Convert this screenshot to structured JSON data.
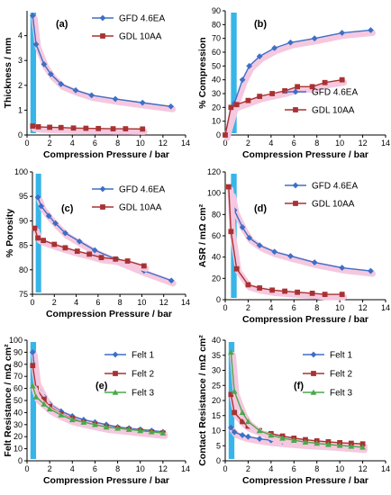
{
  "figure": {
    "colors": {
      "blue": "#3e6fc6",
      "red": "#a83232",
      "green": "#4aa84a",
      "band": "#38b5e8",
      "shadow": "#f5c8df"
    }
  },
  "chart_data": [
    {
      "id": "a",
      "letter": "(a)",
      "type": "line",
      "xlabel": "Compression Pressure / bar",
      "ylabel": "Thickness / mm",
      "xlim": [
        0,
        14
      ],
      "ylim": [
        0,
        5
      ],
      "xticks": [
        0,
        2,
        4,
        6,
        8,
        10,
        12,
        14
      ],
      "yticks": [
        0,
        1,
        2,
        3,
        4
      ],
      "band": [
        0.3,
        0.8
      ],
      "legend_placement": "top-right",
      "series": [
        {
          "name": "GFD 4.6EA",
          "marker": "diamond",
          "color": "#3e6fc6",
          "x": [
            0.5,
            0.8,
            1.5,
            2.1,
            3.0,
            4.3,
            5.7,
            7.8,
            10.2,
            12.7
          ],
          "y": [
            4.8,
            3.65,
            2.85,
            2.45,
            2.05,
            1.8,
            1.6,
            1.45,
            1.3,
            1.15
          ]
        },
        {
          "name": "GDL 10AA",
          "marker": "square",
          "color": "#a83232",
          "x": [
            0.5,
            1.0,
            2.0,
            3.0,
            4.1,
            5.2,
            6.3,
            7.6,
            8.7,
            10.2
          ],
          "y": [
            0.36,
            0.33,
            0.31,
            0.3,
            0.28,
            0.27,
            0.26,
            0.25,
            0.25,
            0.24
          ]
        }
      ]
    },
    {
      "id": "b",
      "letter": "(b)",
      "type": "line",
      "xlabel": "Compression Pressure / bar",
      "ylabel": "% Compression",
      "xlim": [
        0,
        14
      ],
      "ylim": [
        0,
        90
      ],
      "xticks": [
        0,
        2,
        4,
        6,
        8,
        10,
        12,
        14
      ],
      "yticks": [
        0,
        10,
        20,
        30,
        40,
        50,
        60,
        70,
        80,
        90
      ],
      "band": [
        0.5,
        1.0
      ],
      "legend_placement": "middle-right",
      "series": [
        {
          "name": "GFD 4.6EA",
          "marker": "diamond",
          "color": "#3e6fc6",
          "x": [
            0,
            0.8,
            1.5,
            2.1,
            3.0,
            4.3,
            5.7,
            7.8,
            10.2,
            12.7
          ],
          "y": [
            0,
            23,
            40,
            50,
            57,
            63,
            67,
            70,
            74,
            76
          ]
        },
        {
          "name": "GDL 10AA",
          "marker": "square",
          "color": "#a83232",
          "x": [
            0,
            0.5,
            1.0,
            2.0,
            3.0,
            4.1,
            5.2,
            6.3,
            7.6,
            8.7,
            10.2
          ],
          "y": [
            0,
            20,
            22,
            25,
            28,
            30,
            32,
            35,
            35,
            38,
            40
          ]
        }
      ]
    },
    {
      "id": "c",
      "letter": "(c)",
      "type": "line",
      "xlabel": "Compression Pressure / bar",
      "ylabel": "% Porosity",
      "xlim": [
        0,
        14
      ],
      "ylim": [
        75,
        100
      ],
      "xticks": [
        0,
        2,
        4,
        6,
        8,
        10,
        12,
        14
      ],
      "yticks": [
        75,
        80,
        85,
        90,
        95,
        100
      ],
      "band": [
        0.3,
        0.8
      ],
      "legend_placement": "top-right",
      "series": [
        {
          "name": "GFD 4.6EA",
          "marker": "diamond",
          "color": "#3e6fc6",
          "x": [
            0.5,
            0.8,
            1.5,
            2.1,
            3.0,
            4.3,
            5.7,
            7.8,
            10.2,
            12.7
          ],
          "y": [
            94.8,
            93.0,
            91.0,
            89.5,
            87.5,
            85.8,
            84.0,
            82.0,
            79.8,
            77.8
          ]
        },
        {
          "name": "GDL 10AA",
          "marker": "square",
          "color": "#a83232",
          "x": [
            0.2,
            0.5,
            1.0,
            2.0,
            3.0,
            4.1,
            5.2,
            6.3,
            7.6,
            8.7,
            10.2
          ],
          "y": [
            88.5,
            86.5,
            86.0,
            85.2,
            84.5,
            83.8,
            83.2,
            82.5,
            82.2,
            81.8,
            80.8
          ]
        }
      ]
    },
    {
      "id": "d",
      "letter": "(d)",
      "type": "line",
      "xlabel": "Compression Pressure / bar",
      "ylabel": "ASR / mΩ cm²",
      "xlim": [
        0,
        14
      ],
      "ylim": [
        0,
        120
      ],
      "xticks": [
        0,
        2,
        4,
        6,
        8,
        10,
        12,
        14
      ],
      "yticks": [
        0,
        20,
        40,
        60,
        80,
        100,
        120
      ],
      "band": [
        0.5,
        1.0
      ],
      "legend_placement": "top-right",
      "series": [
        {
          "name": "GFD 4.6EA",
          "marker": "diamond",
          "color": "#3e6fc6",
          "x": [
            0.5,
            0.8,
            1.5,
            2.1,
            3.0,
            4.3,
            5.7,
            7.8,
            10.2,
            12.7
          ],
          "y": [
            100,
            84,
            68,
            58,
            51,
            45,
            41,
            35,
            30,
            27
          ]
        },
        {
          "name": "GDL 10AA",
          "marker": "square",
          "color": "#a83232",
          "x": [
            0.3,
            0.5,
            1.0,
            2.0,
            3.0,
            4.1,
            5.2,
            6.3,
            7.6,
            8.7,
            10.2
          ],
          "y": [
            106,
            64,
            29,
            14,
            11,
            9,
            8,
            7,
            6,
            5,
            5
          ]
        }
      ]
    },
    {
      "id": "e",
      "letter": "(e)",
      "type": "line",
      "xlabel": "Compression Pressure / bar",
      "ylabel": "Felt Resistance / mΩ cm²",
      "xlim": [
        0,
        14
      ],
      "ylim": [
        0,
        100
      ],
      "xticks": [
        0,
        2,
        4,
        6,
        8,
        10,
        12,
        14
      ],
      "yticks": [
        0,
        10,
        20,
        30,
        40,
        50,
        60,
        70,
        80,
        90,
        100
      ],
      "band": [
        0.3,
        0.8
      ],
      "legend_placement": "top-right",
      "series": [
        {
          "name": "Felt 1",
          "marker": "diamond",
          "color": "#3e6fc6",
          "x": [
            0.5,
            0.8,
            1.5,
            2.0,
            3.0,
            4.0,
            5.0,
            6.0,
            7.0,
            8.0,
            9.0,
            10.0,
            11.0,
            12.0
          ],
          "y": [
            90,
            66,
            53,
            47,
            41,
            37,
            34,
            32,
            30,
            28,
            27,
            26,
            25,
            24
          ]
        },
        {
          "name": "Felt 2",
          "marker": "square",
          "color": "#a83232",
          "x": [
            0.5,
            0.8,
            1.5,
            2.0,
            3.0,
            4.0,
            5.0,
            6.0,
            7.0,
            8.0,
            9.0,
            10.0,
            11.0,
            12.0
          ],
          "y": [
            79,
            60,
            51,
            45,
            39,
            35,
            32,
            30,
            28,
            27,
            26,
            25,
            24,
            23
          ]
        },
        {
          "name": "Felt 3",
          "marker": "triangle",
          "color": "#4aa84a",
          "x": [
            0.5,
            0.8,
            1.5,
            2.0,
            3.0,
            4.0,
            5.0,
            6.0,
            7.0,
            8.0,
            9.0,
            10.0,
            11.0,
            12.0
          ],
          "y": [
            62,
            53,
            47,
            43,
            38,
            34,
            32,
            30,
            28,
            27,
            26,
            25,
            24,
            23
          ]
        }
      ]
    },
    {
      "id": "f",
      "letter": "(f)",
      "type": "line",
      "xlabel": "Compression Pressure / bar",
      "ylabel": "Contact Resistance / mΩ cm²",
      "xlim": [
        0,
        14
      ],
      "ylim": [
        0,
        40
      ],
      "xticks": [
        0,
        2,
        4,
        6,
        8,
        10,
        12,
        14
      ],
      "yticks": [
        0,
        5,
        10,
        15,
        20,
        25,
        30,
        35,
        40
      ],
      "band": [
        0.3,
        0.8
      ],
      "legend_placement": "top-right",
      "series": [
        {
          "name": "Felt 1",
          "marker": "diamond",
          "color": "#3e6fc6",
          "x": [
            0.5,
            0.8,
            1.5,
            2.0,
            3.0,
            4.0,
            5.0,
            6.0,
            7.0,
            8.0,
            9.0,
            10.0,
            11.0,
            12.0
          ],
          "y": [
            11,
            9.5,
            8.5,
            8.0,
            7.3,
            6.8,
            6.4,
            6.1,
            5.8,
            5.6,
            5.4,
            5.3,
            5.2,
            5.1
          ]
        },
        {
          "name": "Felt 2",
          "marker": "square",
          "color": "#a83232",
          "x": [
            0.5,
            0.8,
            1.5,
            2.0,
            3.0,
            4.0,
            5.0,
            6.0,
            7.0,
            8.0,
            9.0,
            10.0,
            11.0,
            12.0
          ],
          "y": [
            22,
            16,
            13,
            11.5,
            10,
            9,
            8.2,
            7.5,
            7,
            6.6,
            6.3,
            6.0,
            5.8,
            5.6
          ]
        },
        {
          "name": "Felt 3",
          "marker": "triangle",
          "color": "#4aa84a",
          "x": [
            0.5,
            0.8,
            1.5,
            2.0,
            3.0,
            4.0,
            5.0,
            6.0,
            7.0,
            8.0,
            9.0,
            10.0,
            11.0,
            12.0
          ],
          "y": [
            36,
            23,
            16,
            13,
            10,
            8.5,
            7.5,
            6.8,
            6.2,
            5.8,
            5.4,
            5.1,
            4.8,
            4.5
          ]
        }
      ]
    }
  ]
}
